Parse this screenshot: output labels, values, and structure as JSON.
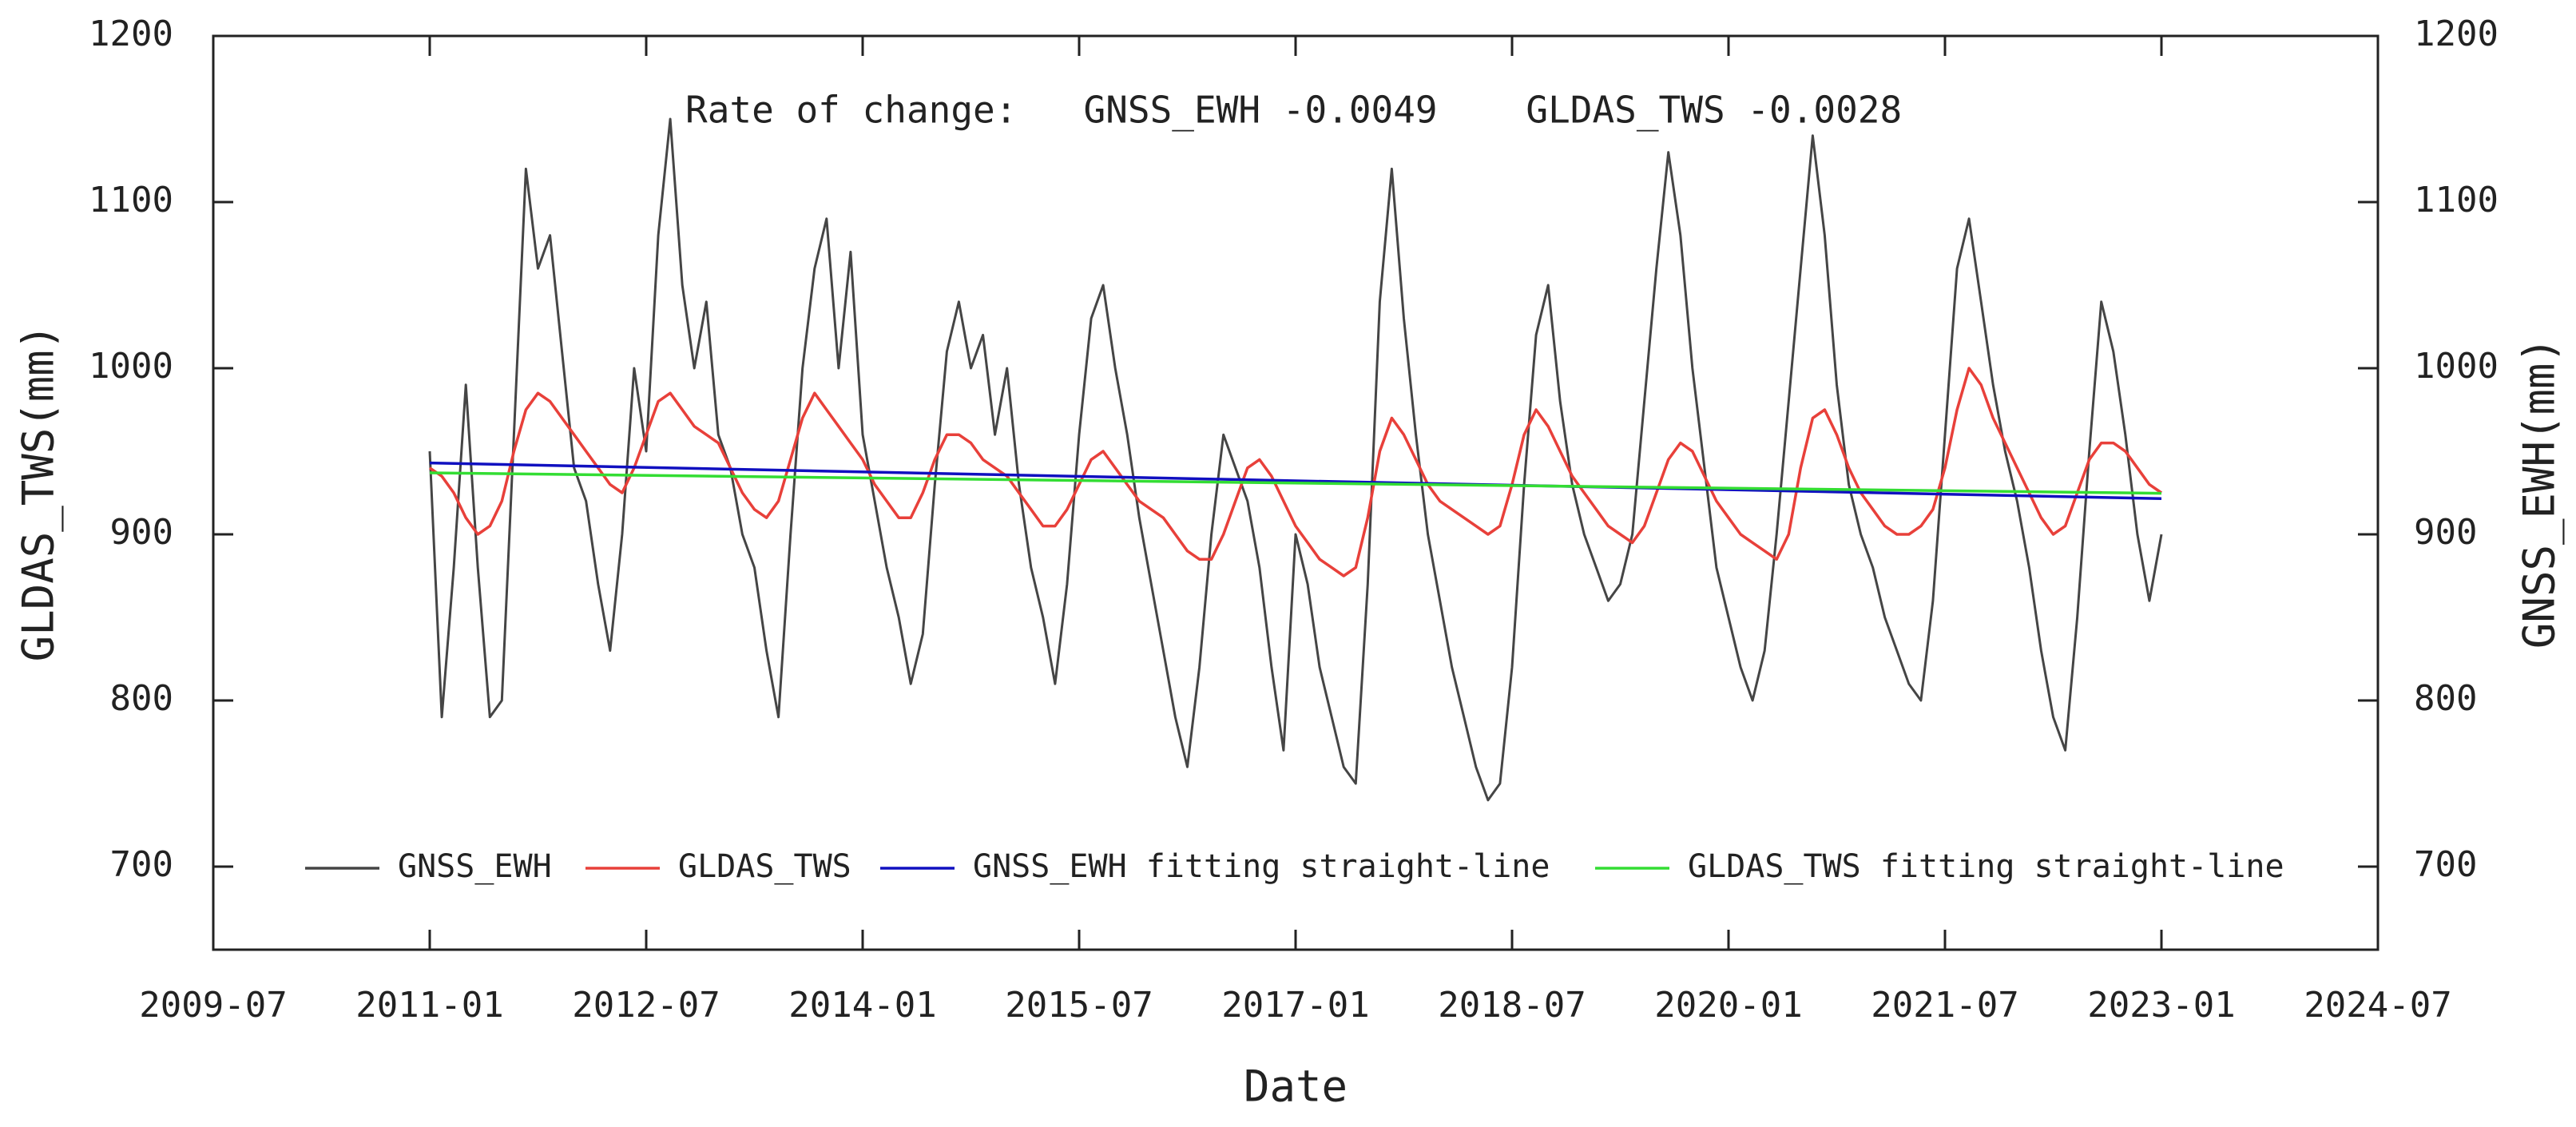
{
  "chart_data": {
    "type": "line",
    "annotation": "Rate of change:   GNSS_EWH -0.0049    GLDAS_TWS -0.0028",
    "x_label": "Date",
    "y_label": "GLDAS_TWS(mm)",
    "y2_label": "GNSS_EWH(mm)",
    "xlim": [
      "2009-07",
      "2024-07"
    ],
    "xticks": [
      "2009-07",
      "2011-01",
      "2012-07",
      "2014-01",
      "2015-07",
      "2017-01",
      "2018-07",
      "2020-01",
      "2021-07",
      "2023-01",
      "2024-07"
    ],
    "ylim": [
      650,
      1200
    ],
    "yticks": [
      700,
      800,
      900,
      1000,
      1100,
      1200
    ],
    "y2lim": [
      650,
      1200
    ],
    "y2ticks": [
      700,
      800,
      900,
      1000,
      1100,
      1200
    ],
    "legend": "bottom",
    "x": [
      "2011-01",
      "2011-02",
      "2011-03",
      "2011-04",
      "2011-05",
      "2011-06",
      "2011-07",
      "2011-08",
      "2011-09",
      "2011-10",
      "2011-11",
      "2011-12",
      "2012-01",
      "2012-02",
      "2012-03",
      "2012-04",
      "2012-05",
      "2012-06",
      "2012-07",
      "2012-08",
      "2012-09",
      "2012-10",
      "2012-11",
      "2012-12",
      "2013-01",
      "2013-02",
      "2013-03",
      "2013-04",
      "2013-05",
      "2013-06",
      "2013-07",
      "2013-08",
      "2013-09",
      "2013-10",
      "2013-11",
      "2013-12",
      "2014-01",
      "2014-02",
      "2014-03",
      "2014-04",
      "2014-05",
      "2014-06",
      "2014-07",
      "2014-08",
      "2014-09",
      "2014-10",
      "2014-11",
      "2014-12",
      "2015-01",
      "2015-02",
      "2015-03",
      "2015-04",
      "2015-05",
      "2015-06",
      "2015-07",
      "2015-08",
      "2015-09",
      "2015-10",
      "2015-11",
      "2015-12",
      "2016-01",
      "2016-02",
      "2016-03",
      "2016-04",
      "2016-05",
      "2016-06",
      "2016-07",
      "2016-08",
      "2016-09",
      "2016-10",
      "2016-11",
      "2016-12",
      "2017-01",
      "2017-02",
      "2017-03",
      "2017-04",
      "2017-05",
      "2017-06",
      "2017-07",
      "2017-08",
      "2017-09",
      "2017-10",
      "2017-11",
      "2017-12",
      "2018-01",
      "2018-02",
      "2018-03",
      "2018-04",
      "2018-05",
      "2018-06",
      "2018-07",
      "2018-08",
      "2018-09",
      "2018-10",
      "2018-11",
      "2018-12",
      "2019-01",
      "2019-02",
      "2019-03",
      "2019-04",
      "2019-05",
      "2019-06",
      "2019-07",
      "2019-08",
      "2019-09",
      "2019-10",
      "2019-11",
      "2019-12",
      "2020-01",
      "2020-02",
      "2020-03",
      "2020-04",
      "2020-05",
      "2020-06",
      "2020-07",
      "2020-08",
      "2020-09",
      "2020-10",
      "2020-11",
      "2020-12",
      "2021-01",
      "2021-02",
      "2021-03",
      "2021-04",
      "2021-05",
      "2021-06",
      "2021-07",
      "2021-08",
      "2021-09",
      "2021-10",
      "2021-11",
      "2021-12",
      "2022-01",
      "2022-02",
      "2022-03",
      "2022-04",
      "2022-05",
      "2022-06",
      "2022-07",
      "2022-08",
      "2022-09",
      "2022-10",
      "2022-11",
      "2022-12",
      "2023-01"
    ],
    "series": [
      {
        "name": "GNSS_EWH",
        "color": "#454545",
        "axis": "y2",
        "values": [
          950,
          790,
          880,
          990,
          880,
          790,
          800,
          960,
          1120,
          1060,
          1080,
          1010,
          940,
          920,
          870,
          830,
          900,
          1000,
          950,
          1080,
          1150,
          1050,
          1000,
          1040,
          960,
          940,
          900,
          880,
          830,
          790,
          900,
          1000,
          1060,
          1090,
          1000,
          1070,
          960,
          920,
          880,
          850,
          810,
          840,
          930,
          1010,
          1040,
          1000,
          1020,
          960,
          1000,
          930,
          880,
          850,
          810,
          870,
          960,
          1030,
          1050,
          1000,
          960,
          910,
          870,
          830,
          790,
          760,
          820,
          900,
          960,
          940,
          920,
          880,
          820,
          770,
          900,
          870,
          820,
          790,
          760,
          750,
          870,
          1040,
          1120,
          1030,
          960,
          900,
          860,
          820,
          790,
          760,
          740,
          750,
          820,
          930,
          1020,
          1050,
          980,
          930,
          900,
          880,
          860,
          870,
          900,
          980,
          1060,
          1130,
          1080,
          1000,
          940,
          880,
          850,
          820,
          800,
          830,
          900,
          980,
          1060,
          1140,
          1080,
          990,
          930,
          900,
          880,
          850,
          830,
          810,
          800,
          860,
          960,
          1060,
          1090,
          1040,
          990,
          950,
          920,
          880,
          830,
          790,
          770,
          850,
          950,
          1040,
          1010,
          960,
          900,
          860,
          900
        ]
      },
      {
        "name": "GLDAS_TWS",
        "color": "#e8403a",
        "values": [
          940,
          935,
          925,
          910,
          900,
          905,
          920,
          950,
          975,
          985,
          980,
          970,
          960,
          950,
          940,
          930,
          925,
          940,
          960,
          980,
          985,
          975,
          965,
          960,
          955,
          940,
          925,
          915,
          910,
          920,
          945,
          970,
          985,
          975,
          965,
          955,
          945,
          930,
          920,
          910,
          910,
          925,
          945,
          960,
          960,
          955,
          945,
          940,
          935,
          925,
          915,
          905,
          905,
          915,
          930,
          945,
          950,
          940,
          930,
          920,
          915,
          910,
          900,
          890,
          885,
          885,
          900,
          920,
          940,
          945,
          935,
          920,
          905,
          895,
          885,
          880,
          875,
          880,
          910,
          950,
          970,
          960,
          945,
          930,
          920,
          915,
          910,
          905,
          900,
          905,
          930,
          960,
          975,
          965,
          950,
          935,
          925,
          915,
          905,
          900,
          895,
          905,
          925,
          945,
          955,
          950,
          935,
          920,
          910,
          900,
          895,
          890,
          885,
          900,
          940,
          970,
          975,
          960,
          940,
          925,
          915,
          905,
          900,
          900,
          905,
          915,
          940,
          975,
          1000,
          990,
          970,
          955,
          940,
          925,
          910,
          900,
          905,
          925,
          945,
          955,
          955,
          950,
          940,
          930,
          925
        ]
      },
      {
        "name": "GNSS_EWH fitting straight-line",
        "color": "#1010c0",
        "axis": "y2",
        "x": [
          "2011-01",
          "2023-01"
        ],
        "values": [
          943,
          921.5
        ]
      },
      {
        "name": "GLDAS_TWS fitting straight-line",
        "color": "#33dd33",
        "x": [
          "2011-01",
          "2023-01"
        ],
        "values": [
          937,
          924.7
        ]
      }
    ]
  }
}
